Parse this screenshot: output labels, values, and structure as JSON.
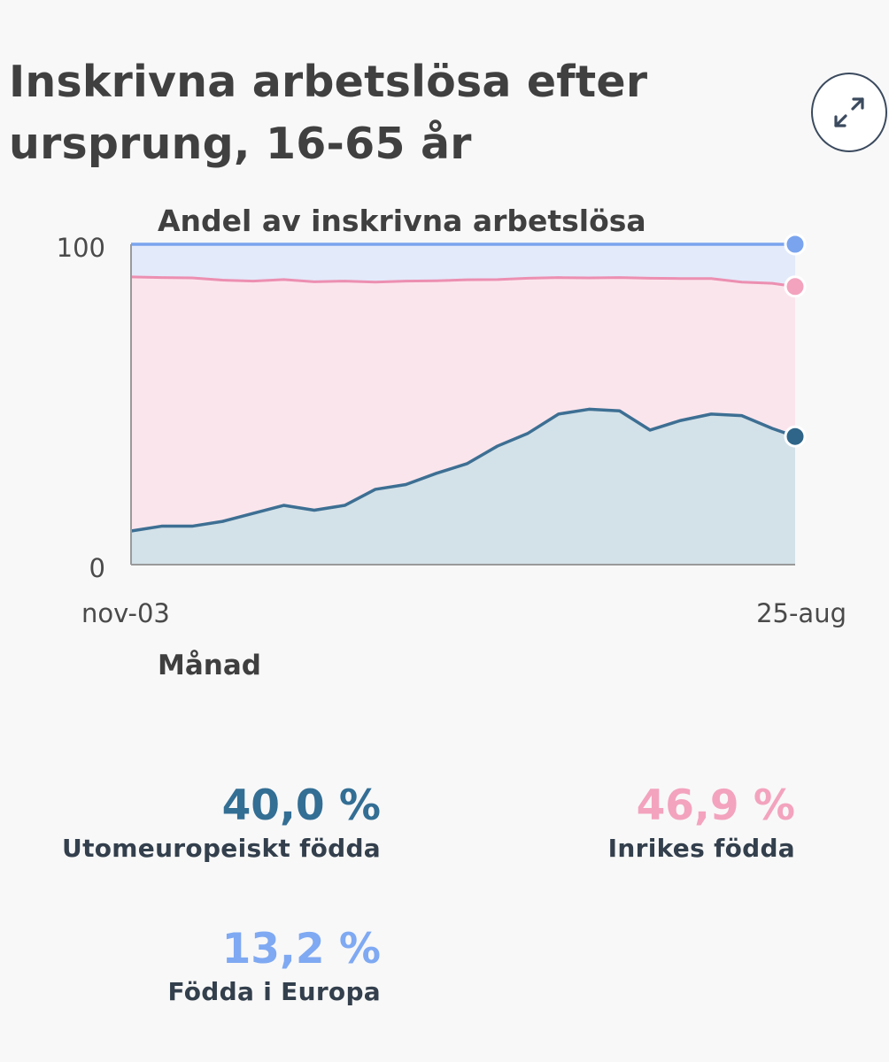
{
  "header": {
    "title_line1": "Inskrivna arbetslösa efter",
    "title_line2": "ursprung, 16-65 år",
    "expand_icon": "expand-arrows-icon"
  },
  "chart_data": {
    "type": "area",
    "title": "Andel av inskrivna arbetslösa",
    "xlabel": "Månad",
    "ylabel": "",
    "ylim": [
      0,
      100
    ],
    "y_ticks": [
      "0",
      "100"
    ],
    "x_ticks": [
      "nov-03",
      "25-aug"
    ],
    "x_range": [
      "2003-11",
      "2025-08"
    ],
    "stacked": true,
    "grid": false,
    "series": [
      {
        "name": "Utomeuropeiskt födda",
        "color": "#3d6f93",
        "fill": "#d3e1e8",
        "x": [
          "2003-11",
          "2004-11",
          "2005-11",
          "2006-11",
          "2007-11",
          "2008-11",
          "2009-11",
          "2010-11",
          "2011-11",
          "2012-11",
          "2013-11",
          "2014-11",
          "2015-11",
          "2016-11",
          "2017-11",
          "2018-11",
          "2019-11",
          "2020-11",
          "2021-11",
          "2022-11",
          "2023-11",
          "2024-11",
          "2025-08"
        ],
        "values": [
          10.5,
          12,
          12,
          13.5,
          16,
          18.5,
          17,
          18.5,
          23.5,
          25,
          28.5,
          31.5,
          37,
          41,
          47,
          48.5,
          48,
          42,
          45,
          47,
          46.5,
          42.5,
          40.0
        ]
      },
      {
        "name": "Inrikes födda",
        "color": "#ec8fb1",
        "fill": "#fbe5ec",
        "x": [
          "2003-11",
          "2004-11",
          "2005-11",
          "2006-11",
          "2007-11",
          "2008-11",
          "2009-11",
          "2010-11",
          "2011-11",
          "2012-11",
          "2013-11",
          "2014-11",
          "2015-11",
          "2016-11",
          "2017-11",
          "2018-11",
          "2019-11",
          "2020-11",
          "2021-11",
          "2022-11",
          "2023-11",
          "2024-11",
          "2025-08"
        ],
        "cumulative": [
          89.8,
          89.6,
          89.5,
          88.8,
          88.5,
          89.0,
          88.3,
          88.5,
          88.2,
          88.5,
          88.6,
          88.9,
          89.0,
          89.4,
          89.6,
          89.5,
          89.6,
          89.4,
          89.3,
          89.3,
          88.2,
          87.8,
          86.8
        ]
      },
      {
        "name": "Födda i Europa",
        "color": "#7aa4ee",
        "fill": "#e3eafa",
        "x": [
          "2003-11",
          "2025-08"
        ],
        "cumulative": [
          100,
          100
        ]
      }
    ]
  },
  "stats": [
    {
      "value": "40,0 %",
      "label": "Utomeuropeiskt födda",
      "color": "#336e94"
    },
    {
      "value": "46,9 %",
      "label": "Inrikes födda",
      "color": "#f3a3be"
    },
    {
      "value": "13,2 %",
      "label": "Födda i Europa",
      "color": "#7fa9f2"
    }
  ]
}
